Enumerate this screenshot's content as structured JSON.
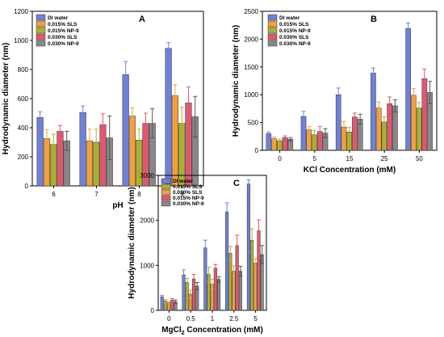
{
  "chart_data": [
    {
      "type": "bar",
      "panel_label": "A",
      "title": "",
      "xlabel": "pH",
      "ylabel": "Hydrodynamic diameter (nm)",
      "ylim": [
        0,
        1200
      ],
      "yticks": [
        0,
        200,
        400,
        600,
        800,
        1000,
        1200
      ],
      "grid": false,
      "legend": "top-left",
      "categories": [
        "6",
        "7",
        "8",
        "9"
      ],
      "series": [
        {
          "name": "DI water",
          "color": "#6f80d8",
          "values": [
            470,
            505,
            765,
            945
          ],
          "errors": [
            40,
            45,
            90,
            40
          ]
        },
        {
          "name": "0.015% SLS",
          "color": "#f0a040",
          "values": [
            325,
            310,
            480,
            620
          ],
          "errors": [
            60,
            80,
            55,
            75
          ]
        },
        {
          "name": "0.015% NP-9",
          "color": "#aab035",
          "values": [
            285,
            300,
            315,
            430
          ],
          "errors": [
            70,
            90,
            75,
            110
          ]
        },
        {
          "name": "0.030% SLS",
          "color": "#e05870",
          "values": [
            375,
            420,
            430,
            570
          ],
          "errors": [
            40,
            75,
            70,
            110
          ]
        },
        {
          "name": "0.030% NP-9",
          "color": "#888888",
          "values": [
            310,
            330,
            430,
            475
          ],
          "errors": [
            65,
            150,
            100,
            140
          ]
        }
      ]
    },
    {
      "type": "bar",
      "panel_label": "B",
      "title": "",
      "xlabel": "KCl Concentration (mM)",
      "ylabel": "Hydrodynamic diameter (nm)",
      "ylim": [
        0,
        2500
      ],
      "yticks": [
        0,
        500,
        1000,
        1500,
        2000,
        2500
      ],
      "grid": false,
      "legend": "top-left",
      "categories": [
        "0",
        "5",
        "15",
        "25",
        "50"
      ],
      "series": [
        {
          "name": "DI water",
          "color": "#6f80d8",
          "values": [
            300,
            610,
            1000,
            1390,
            2190
          ],
          "errors": [
            30,
            90,
            120,
            90,
            100
          ]
        },
        {
          "name": "0.015% SLS",
          "color": "#f0a040",
          "values": [
            210,
            370,
            420,
            760,
            990
          ],
          "errors": [
            30,
            60,
            100,
            110,
            120
          ]
        },
        {
          "name": "0.015% NP-9",
          "color": "#aab035",
          "values": [
            170,
            280,
            330,
            510,
            760
          ],
          "errors": [
            30,
            80,
            80,
            90,
            100
          ]
        },
        {
          "name": "0.030% SLS",
          "color": "#e05870",
          "values": [
            230,
            340,
            600,
            840,
            1290
          ],
          "errors": [
            30,
            90,
            70,
            120,
            170
          ]
        },
        {
          "name": "0.030% NP-9",
          "color": "#888888",
          "values": [
            200,
            310,
            560,
            800,
            1040
          ],
          "errors": [
            30,
            80,
            90,
            110,
            200
          ]
        }
      ]
    },
    {
      "type": "bar",
      "panel_label": "C",
      "title": "",
      "xlabel": "MgCl₂ Concentration (mM)",
      "ylabel": "Hydrodynamic diameter (nm)",
      "ylim": [
        0,
        3000
      ],
      "yticks": [
        0,
        1000,
        2000,
        3000
      ],
      "grid": false,
      "legend": "top-left",
      "categories": [
        "0",
        "0.5",
        "1",
        "2.5",
        "5"
      ],
      "series": [
        {
          "name": "DI water",
          "color": "#6f80d8",
          "values": [
            300,
            790,
            1390,
            2190,
            2810
          ],
          "errors": [
            30,
            110,
            170,
            200,
            90
          ]
        },
        {
          "name": "0.015% SLS",
          "color": "#aab035",
          "values": [
            210,
            620,
            800,
            1270,
            1560
          ],
          "errors": [
            30,
            90,
            160,
            150,
            250
          ]
        },
        {
          "name": "0.030% SLS",
          "color": "#f0a040",
          "values": [
            170,
            360,
            580,
            870,
            1050
          ],
          "errors": [
            30,
            90,
            110,
            120,
            100
          ]
        },
        {
          "name": "0.015% NP-9",
          "color": "#e05870",
          "values": [
            230,
            700,
            940,
            1440,
            1770
          ],
          "errors": [
            30,
            100,
            80,
            230,
            240
          ]
        },
        {
          "name": "0.030% NP-9",
          "color": "#888888",
          "values": [
            190,
            540,
            690,
            870,
            1240
          ],
          "errors": [
            40,
            80,
            60,
            110,
            200
          ]
        }
      ]
    }
  ]
}
